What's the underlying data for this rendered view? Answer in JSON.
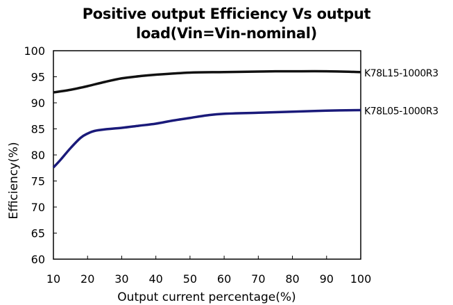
{
  "chart_data": {
    "type": "line",
    "title_lines": [
      "Positive output Efficiency Vs output",
      "load(Vin=Vin-nominal)"
    ],
    "xlabel": "Output current percentage(%)",
    "ylabel": "Efficiency(%)",
    "xlim": [
      10,
      100
    ],
    "ylim": [
      60,
      100
    ],
    "xticks": [
      10,
      20,
      30,
      40,
      50,
      60,
      70,
      80,
      90,
      100
    ],
    "yticks": [
      60,
      65,
      70,
      75,
      80,
      85,
      90,
      95,
      100
    ],
    "grid": false,
    "series": [
      {
        "name": "K78L15-1000R3",
        "color": "#111111",
        "x": [
          10,
          15,
          20,
          25,
          30,
          35,
          40,
          50,
          60,
          70,
          75,
          80,
          90,
          100
        ],
        "y": [
          92.0,
          92.5,
          93.2,
          94.0,
          94.7,
          95.1,
          95.4,
          95.8,
          95.9,
          96.0,
          96.05,
          96.05,
          96.05,
          95.9
        ]
      },
      {
        "name": "K78L05-1000R3",
        "color": "#1a1a7a",
        "x": [
          10,
          12,
          15,
          18,
          20,
          22,
          25,
          30,
          35,
          40,
          45,
          50,
          55,
          60,
          70,
          80,
          90,
          100
        ],
        "y": [
          77.6,
          79.0,
          81.3,
          83.3,
          84.1,
          84.6,
          84.9,
          85.2,
          85.6,
          86.0,
          86.6,
          87.1,
          87.6,
          87.9,
          88.1,
          88.3,
          88.5,
          88.6
        ]
      }
    ]
  }
}
